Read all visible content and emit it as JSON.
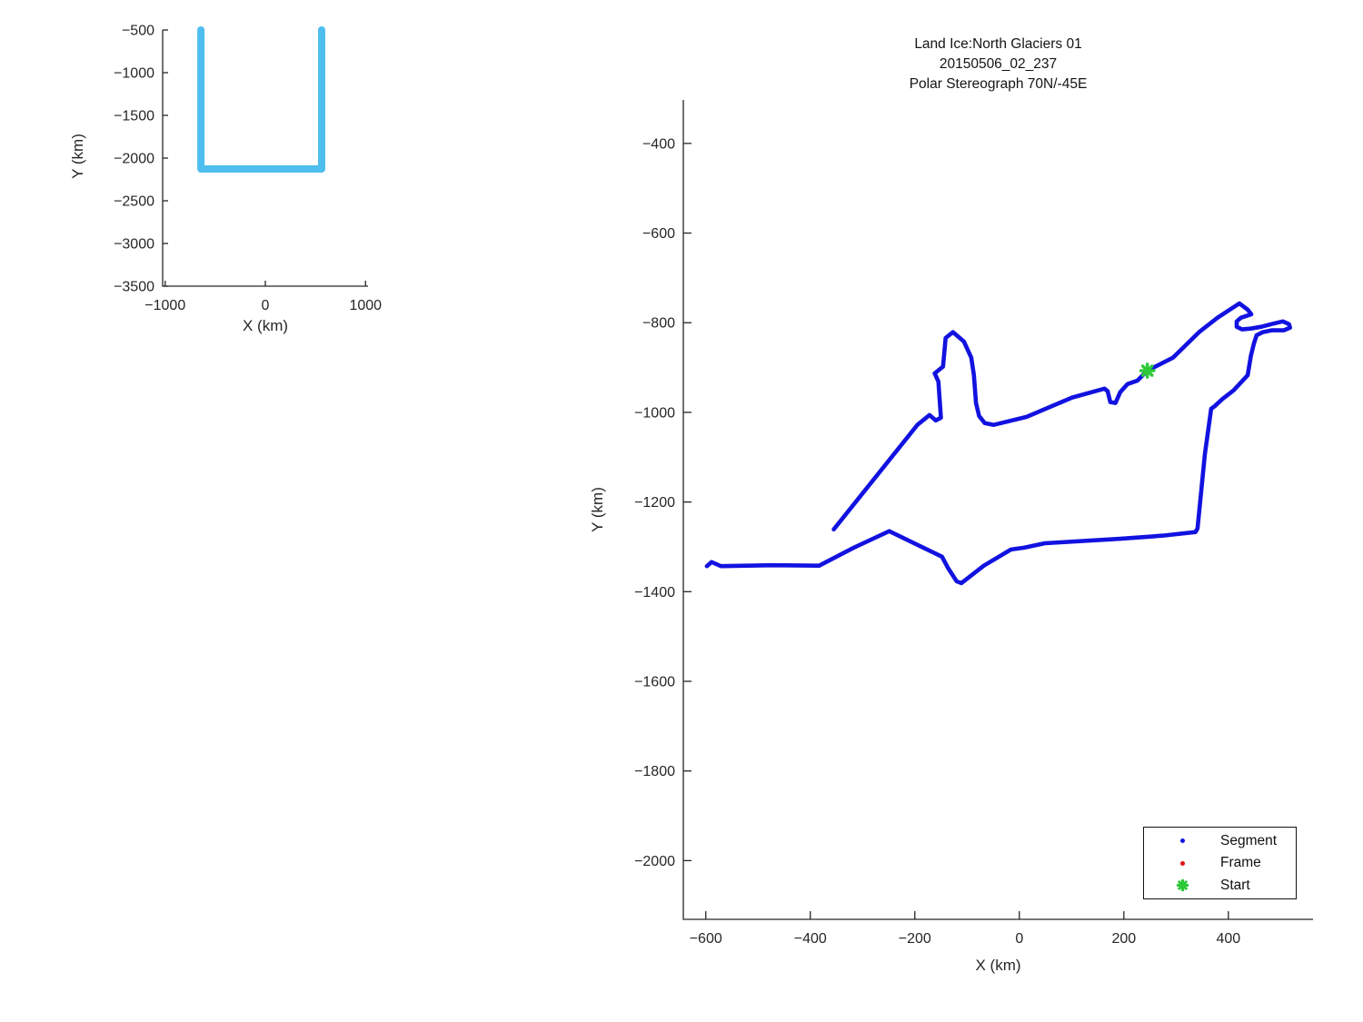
{
  "figure": {
    "background": "#ffffff",
    "axes_color": "#262626"
  },
  "chart_data": [
    {
      "id": "overview-map",
      "type": "line",
      "title": "",
      "xlabel": "X (km)",
      "ylabel": "Y (km)",
      "xlim": [
        -1025,
        1025
      ],
      "ylim": [
        -3500,
        -500
      ],
      "xticks": [
        -1000,
        0,
        1000
      ],
      "yticks": [
        -3500,
        -3000,
        -2500,
        -2000,
        -1500,
        -1000,
        -500
      ],
      "grid": false,
      "legend": null,
      "series": [
        {
          "name": "coverage-outline",
          "color": "#4DBEEE",
          "width": 8,
          "points": [
            [
              -643,
              -500
            ],
            [
              -643,
              -2128
            ],
            [
              562,
              -2128
            ],
            [
              562,
              -500
            ]
          ]
        }
      ]
    },
    {
      "id": "trajectory",
      "type": "line",
      "title_lines": [
        "Land Ice:North Glaciers 01",
        "20150506_02_237",
        "Polar Stereograph 70N/-45E"
      ],
      "xlabel": "X (km)",
      "ylabel": "Y (km)",
      "xlim": [
        -643,
        562
      ],
      "ylim": [
        -2131,
        -303
      ],
      "xticks": [
        -600,
        -400,
        -200,
        0,
        200,
        400
      ],
      "yticks": [
        -2000,
        -1800,
        -1600,
        -1400,
        -1200,
        -1000,
        -800,
        -600,
        -400
      ],
      "grid": false,
      "legend": {
        "position": "southeast",
        "entries": [
          {
            "label": "Segment",
            "marker": "dot",
            "color": "#1212E0"
          },
          {
            "label": "Frame",
            "marker": "dot",
            "color": "#E01212"
          },
          {
            "label": "Start",
            "marker": "asterisk",
            "color": "#2DC937"
          }
        ]
      },
      "start_marker": {
        "x": 245,
        "y": -907,
        "color": "#2DC937"
      },
      "series": [
        {
          "name": "segment-track",
          "color": "#1212E0",
          "width": 4.6,
          "points": [
            [
              -355,
              -1261
            ],
            [
              -195,
              -1028
            ],
            [
              -172,
              -1006
            ],
            [
              -160,
              -1018
            ],
            [
              -150,
              -1012
            ],
            [
              -155,
              -931
            ],
            [
              -162,
              -913
            ],
            [
              -146,
              -898
            ],
            [
              -141,
              -834
            ],
            [
              -127,
              -821
            ],
            [
              -106,
              -842
            ],
            [
              -92,
              -878
            ],
            [
              -87,
              -917
            ],
            [
              -83,
              -979
            ],
            [
              -77,
              -1008
            ],
            [
              -66,
              -1024
            ],
            [
              -49,
              -1028
            ],
            [
              14,
              -1010
            ],
            [
              101,
              -967
            ],
            [
              163,
              -947
            ],
            [
              169,
              -953
            ],
            [
              174,
              -977
            ],
            [
              184,
              -979
            ],
            [
              193,
              -955
            ],
            [
              207,
              -937
            ],
            [
              226,
              -929
            ],
            [
              245,
              -907
            ],
            [
              294,
              -878
            ],
            [
              344,
              -821
            ],
            [
              379,
              -789
            ],
            [
              421,
              -757
            ],
            [
              437,
              -771
            ],
            [
              444,
              -781
            ],
            [
              424,
              -789
            ],
            [
              416,
              -797
            ],
            [
              416,
              -809
            ],
            [
              426,
              -815
            ],
            [
              443,
              -813
            ],
            [
              463,
              -809
            ],
            [
              483,
              -803
            ],
            [
              504,
              -797
            ],
            [
              516,
              -803
            ],
            [
              518,
              -811
            ],
            [
              506,
              -817
            ],
            [
              483,
              -817
            ],
            [
              466,
              -821
            ],
            [
              454,
              -828
            ],
            [
              449,
              -846
            ],
            [
              443,
              -874
            ],
            [
              437,
              -917
            ],
            [
              410,
              -951
            ],
            [
              388,
              -971
            ],
            [
              374,
              -986
            ],
            [
              367,
              -992
            ],
            [
              355,
              -1093
            ],
            [
              341,
              -1259
            ],
            [
              337,
              -1267
            ],
            [
              275,
              -1275
            ],
            [
              193,
              -1282
            ],
            [
              49,
              -1292
            ],
            [
              9,
              -1302
            ],
            [
              -16,
              -1306
            ],
            [
              -68,
              -1342
            ],
            [
              -111,
              -1381
            ],
            [
              -120,
              -1377
            ],
            [
              -137,
              -1346
            ],
            [
              -148,
              -1322
            ],
            [
              -249,
              -1265
            ],
            [
              -317,
              -1302
            ],
            [
              -383,
              -1342
            ],
            [
              -473,
              -1341
            ],
            [
              -571,
              -1343
            ],
            [
              -589,
              -1334
            ],
            [
              -598,
              -1343
            ]
          ]
        }
      ]
    }
  ]
}
